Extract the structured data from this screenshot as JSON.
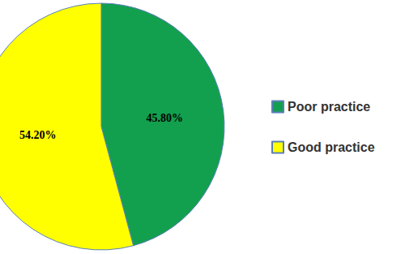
{
  "chart_data": {
    "type": "pie",
    "categories": [
      "Poor practice",
      "Good practice"
    ],
    "values": [
      45.8,
      54.2
    ],
    "value_labels": [
      "45.80%",
      "54.20%"
    ],
    "colors": [
      "#12a04f",
      "#ffff00"
    ],
    "data_labels": true,
    "legend": "right"
  }
}
